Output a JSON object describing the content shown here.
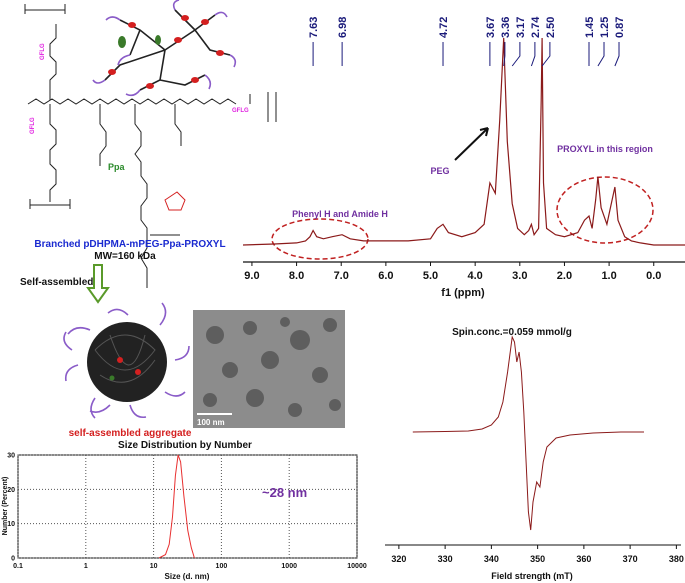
{
  "scheme": {
    "gflg_labels": [
      "GFLG",
      "GFLG",
      "GFLG"
    ],
    "ppa": "Ppa",
    "name": "Branched pDHPMA-mPEG-Ppa-PROXYL",
    "mw": "MW=160 kDa",
    "arrow_label": "Self-assembled",
    "aggregate_label": "self-assembled aggregate",
    "scale_bar": "100 nm"
  },
  "chart_data": [
    {
      "type": "line",
      "x_label": "f1 (ppm)",
      "color": "#8b1a1a",
      "peaks": [
        7.63,
        6.98,
        4.72,
        3.67,
        3.36,
        3.17,
        2.74,
        2.5,
        1.45,
        1.25,
        0.87
      ],
      "peak_labels": [
        "7.63",
        "6.98",
        "4.72",
        "3.67",
        "3.36",
        "3.17",
        "2.74",
        "2.50",
        "1.45",
        "1.25",
        "0.87"
      ],
      "annotations": [
        "Phenyl H and Amide H",
        "PEG",
        "PROXYL in this region"
      ],
      "x": [
        9.2,
        8.5,
        8.0,
        7.8,
        7.7,
        7.63,
        7.55,
        7.4,
        7.2,
        6.98,
        6.8,
        6.5,
        6.0,
        5.5,
        5.0,
        4.85,
        4.72,
        4.6,
        4.3,
        4.0,
        3.8,
        3.67,
        3.55,
        3.45,
        3.36,
        3.28,
        3.17,
        3.05,
        2.9,
        2.8,
        2.74,
        2.68,
        2.58,
        2.52,
        2.5,
        2.47,
        2.4,
        2.2,
        2.0,
        1.7,
        1.55,
        1.45,
        1.38,
        1.3,
        1.25,
        1.18,
        1.05,
        0.95,
        0.87,
        0.8,
        0.65,
        0.5,
        0.3,
        0.0,
        -0.4,
        -0.7
      ],
      "values": [
        0,
        0.5,
        1,
        2,
        4,
        7,
        4,
        3,
        4,
        5,
        3,
        2,
        2,
        2,
        3,
        8,
        10,
        6,
        4,
        6,
        10,
        30,
        25,
        60,
        100,
        50,
        20,
        8,
        5,
        7,
        10,
        5,
        8,
        70,
        100,
        30,
        8,
        5,
        4,
        6,
        12,
        14,
        8,
        22,
        33,
        18,
        10,
        20,
        28,
        12,
        4,
        2,
        1,
        0,
        0,
        0
      ],
      "xlim": [
        9.2,
        -0.7
      ],
      "ylim": [
        0,
        100
      ],
      "xticks": [
        {
          "value": 9,
          "label": "9.0"
        },
        {
          "value": 8,
          "label": "8.0"
        },
        {
          "value": 7,
          "label": "7.0"
        },
        {
          "value": 6,
          "label": "6.0"
        },
        {
          "value": 5,
          "label": "5.0"
        },
        {
          "value": 4,
          "label": "4.0"
        },
        {
          "value": 3,
          "label": "3.0"
        },
        {
          "value": 2,
          "label": "2.0"
        },
        {
          "value": 1,
          "label": "1.0"
        },
        {
          "value": 0,
          "label": "0.0"
        }
      ]
    },
    {
      "type": "line",
      "title": "Spin.conc.=0.059 mmol/g",
      "x_label": "Field strength (mT)",
      "color": "#8b1a1a",
      "x": [
        323,
        330,
        335,
        338,
        340,
        341.5,
        342.5,
        343.5,
        344.5,
        345.0,
        345.5,
        346.0,
        346.5,
        347.0,
        347.5,
        348.0,
        348.5,
        349.0,
        349.8,
        350.5,
        351.2,
        352,
        354,
        357,
        362,
        368,
        373
      ],
      "values": [
        0,
        0.5,
        1,
        3,
        7,
        15,
        30,
        60,
        95,
        90,
        70,
        80,
        60,
        20,
        -30,
        -80,
        -98,
        -70,
        -50,
        -55,
        -30,
        -15,
        -6,
        -3,
        -1,
        0,
        0
      ],
      "xlim": [
        317,
        381
      ],
      "ylim": [
        -113,
        117
      ],
      "xticks": [
        320,
        330,
        340,
        350,
        360,
        370,
        380
      ]
    },
    {
      "type": "line",
      "title": "Size Distribution by Number",
      "x_label": "Size (d. nm)",
      "y_label": "Number (Percent)",
      "annotation": "~28 nm",
      "log_x": true,
      "grid": true,
      "color": "#e83030",
      "x": [
        12,
        15,
        17,
        19,
        21,
        23,
        25,
        28,
        32,
        36,
        40
      ],
      "values": [
        0,
        1,
        4,
        12,
        24,
        30,
        28,
        18,
        8,
        3,
        0
      ],
      "xlim": [
        0.1,
        10000
      ],
      "ylim": [
        0,
        30
      ],
      "xticks": [
        0.1,
        1,
        10,
        100,
        1000,
        10000
      ],
      "yticks": [
        0,
        10,
        20,
        30
      ]
    }
  ]
}
